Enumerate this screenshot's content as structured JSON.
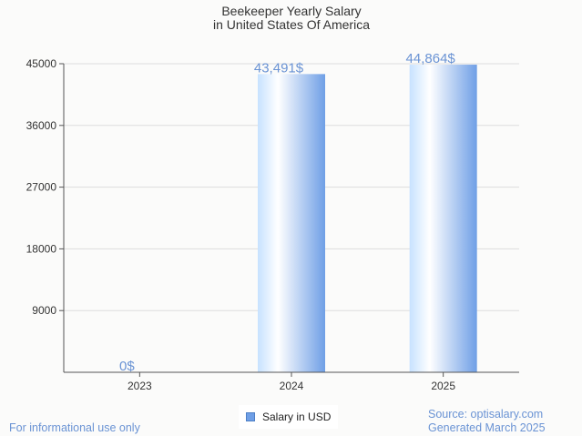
{
  "chart_data": {
    "type": "bar",
    "title": [
      "Beekeeper Yearly Salary",
      "in United States Of America"
    ],
    "categories": [
      "2023",
      "2024",
      "2025"
    ],
    "series": [
      {
        "name": "Salary in USD",
        "values": [
          0,
          43491,
          44864
        ]
      }
    ],
    "data_labels": [
      "0$",
      "43,491$",
      "44,864$"
    ],
    "y_ticks": [
      9000,
      18000,
      27000,
      36000,
      45000
    ],
    "ylim": [
      0,
      45000
    ],
    "grid": true,
    "legend_position": "bottom-center"
  },
  "footer": {
    "disclaimer": "For informational use only",
    "source": "Source: optisalary.com",
    "generated": "Generated March 2025"
  },
  "colors": {
    "bar_light": "#eaf4ff",
    "bar_mid": "#ffffff",
    "bar_dark": "#6f9fe6",
    "label": "#6a93d4",
    "grid": "#dddddd",
    "axis": "#555555"
  }
}
